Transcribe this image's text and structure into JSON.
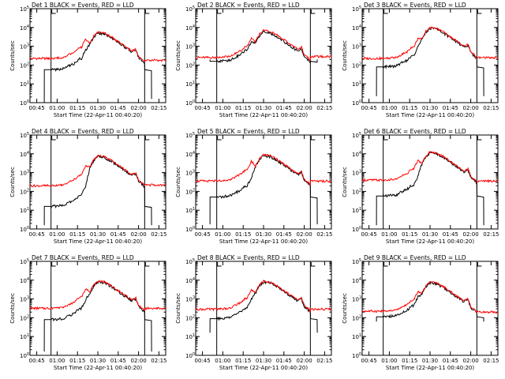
{
  "chart_data": {
    "type": "line",
    "xlabel": "Start Time (22-Apr-11 00:40:20)",
    "ylabel": "Counts/sec",
    "x_tick_labels": [
      "00:45",
      "01:00",
      "01:15",
      "01:30",
      "01:45",
      "02:00",
      "02:15"
    ],
    "x_ticks_min": [
      5,
      20,
      35,
      50,
      65,
      80,
      95
    ],
    "xlim_min": [
      0,
      100
    ],
    "y_log": true,
    "y_tick_exponents": [
      0,
      1,
      2,
      3,
      4,
      5
    ],
    "ylim_log10": [
      0,
      5
    ],
    "vertical_markers_min": [
      15.5,
      84.5
    ],
    "legend_text": "BLACK = Events, RED = LLD",
    "colors": {
      "events": "#000000",
      "lld": "#ff0000",
      "axis": "#000000"
    },
    "panels": [
      {
        "title": "Det 1",
        "title_text": "Det 1 BLACK = Events, RED = LLD",
        "ev_pre": 1.75,
        "ev_low": [
          -0.2,
          0.7
        ],
        "ev_post_end": 0.2,
        "lld_pre": 2.35,
        "lld_post": 2.25,
        "ev_peak": 3.7,
        "lld_peak": 3.75
      },
      {
        "title": "Det 2",
        "title_text": "Det 2 BLACK = Events, RED = LLD",
        "ev_pre": 2.2,
        "ev_low": [
          2.3,
          2.3
        ],
        "ev_post_end": 2.3,
        "lld_pre": 2.4,
        "lld_post": 2.45,
        "ev_peak": 3.75,
        "lld_peak": 3.85
      },
      {
        "title": "Det 3",
        "title_text": "Det 3 BLACK = Events, RED = LLD",
        "ev_pre": 1.9,
        "ev_low": [
          0.35,
          0.35
        ],
        "ev_post_end": 0.35,
        "lld_pre": 2.35,
        "lld_post": 2.4,
        "ev_peak": 3.95,
        "lld_peak": 4.0
      },
      {
        "title": "Det 4",
        "title_text": "Det 4 BLACK = Events, RED = LLD",
        "ev_pre": 1.2,
        "ev_low": [
          0.2,
          0.2
        ],
        "ev_post_end": 0.2,
        "lld_pre": 2.3,
        "lld_post": 2.35,
        "ev_peak": 3.85,
        "lld_peak": 3.9
      },
      {
        "title": "Det 5",
        "title_text": "Det 5 BLACK = Events, RED = LLD",
        "ev_pre": 1.7,
        "ev_low": [
          0.25,
          0.25
        ],
        "ev_post_end": 0.25,
        "lld_pre": 2.55,
        "lld_post": 2.55,
        "ev_peak": 3.9,
        "lld_peak": 3.95
      },
      {
        "title": "Det 6",
        "title_text": "Det 6 BLACK = Events, RED = LLD",
        "ev_pre": 1.75,
        "ev_low": [
          0.2,
          0.2
        ],
        "ev_post_end": 0.2,
        "lld_pre": 2.6,
        "lld_post": 2.55,
        "ev_peak": 4.05,
        "lld_peak": 4.1
      },
      {
        "title": "Det 7",
        "title_text": "Det 7 BLACK = Events, RED = LLD",
        "ev_pre": 1.9,
        "ev_low": [
          0.2,
          0.2
        ],
        "ev_post_end": 0.2,
        "lld_pre": 2.5,
        "lld_post": 2.5,
        "ev_peak": 3.9,
        "lld_peak": 3.95
      },
      {
        "title": "Det 8",
        "title_text": "Det 8 BLACK = Events, RED = LLD",
        "ev_pre": 1.95,
        "ev_low": [
          1.2,
          1.2
        ],
        "ev_post_end": 1.2,
        "lld_pre": 2.45,
        "lld_post": 2.45,
        "ev_peak": 3.9,
        "lld_peak": 3.95
      },
      {
        "title": "Det 9",
        "title_text": "Det 9 BLACK = Events, RED = LLD",
        "ev_pre": 2.05,
        "ev_low": [
          1.8,
          1.8
        ],
        "ev_post_end": 1.8,
        "lld_pre": 2.35,
        "lld_post": 2.3,
        "ev_peak": 3.85,
        "lld_peak": 3.9
      }
    ]
  }
}
